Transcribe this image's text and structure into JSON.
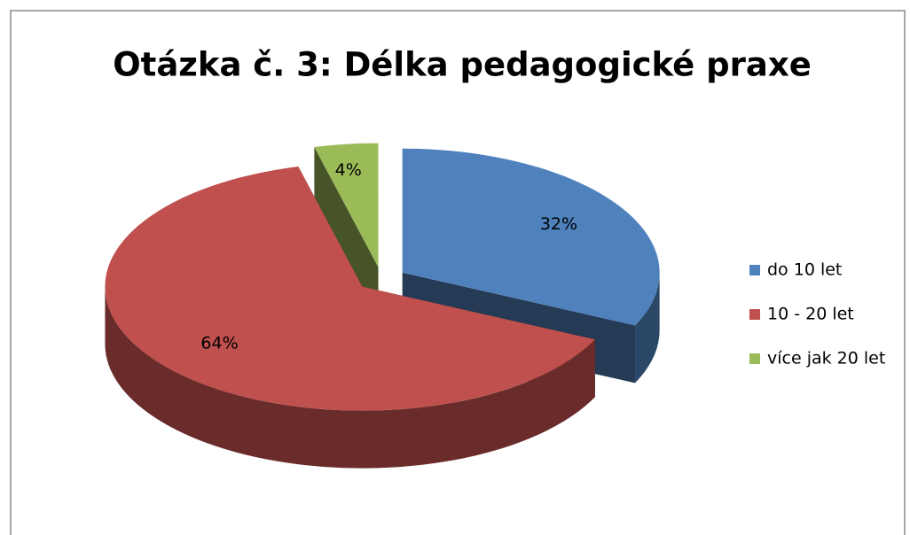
{
  "chart_data": {
    "type": "pie3d",
    "title": "Otázka č. 3: Délka pedagogické praxe",
    "categories": [
      "do 10 let",
      "10 - 20 let",
      "více jak 20 let"
    ],
    "values": [
      32,
      64,
      4
    ],
    "value_labels": [
      "32%",
      "64%",
      "4%"
    ],
    "colors": [
      "#4f81bd",
      "#c0504d",
      "#9bbb59"
    ],
    "legend": "right"
  }
}
